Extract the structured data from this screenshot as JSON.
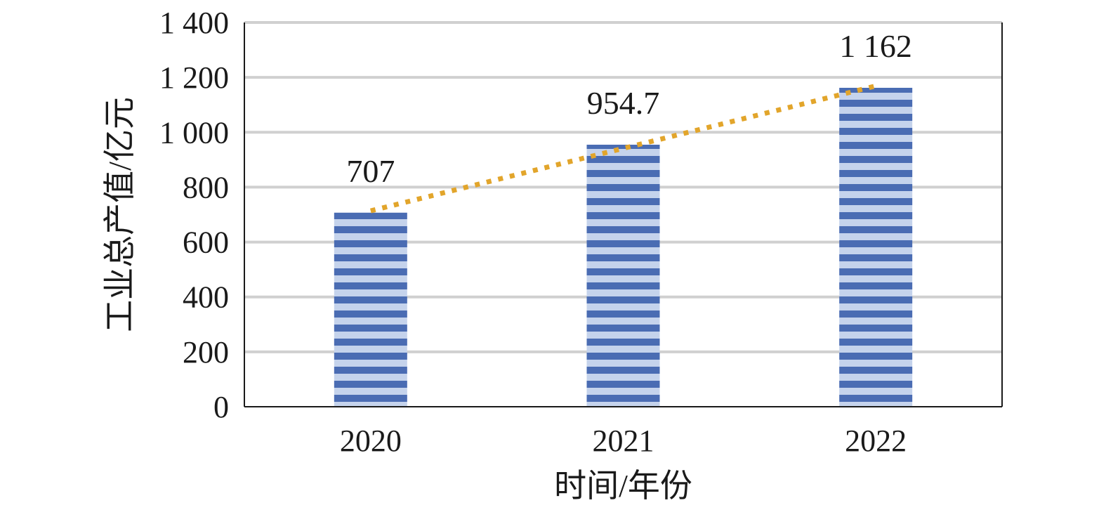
{
  "chart_data": {
    "type": "bar",
    "categories": [
      "2020",
      "2021",
      "2022"
    ],
    "values": [
      707,
      954.7,
      1162
    ],
    "data_labels": [
      "707",
      "954.7",
      "1 162"
    ],
    "xlabel": "时间/年份",
    "ylabel": "工业总产值/亿元",
    "ylim": [
      0,
      1400
    ],
    "yticks": [
      {
        "value": 0,
        "label": "0"
      },
      {
        "value": 200,
        "label": "200"
      },
      {
        "value": 400,
        "label": "400"
      },
      {
        "value": 600,
        "label": "600"
      },
      {
        "value": 800,
        "label": "800"
      },
      {
        "value": 1000,
        "label": "1 000"
      },
      {
        "value": 1200,
        "label": "1 200"
      },
      {
        "value": 1400,
        "label": "1 400"
      }
    ],
    "grid": true,
    "legend": "none",
    "trendline": "linear, dotted",
    "colors": {
      "bar_dark": "#4a6cb3",
      "bar_light": "#c5d3ec",
      "trendline": "#e2a52b",
      "grid": "#d0d0d0",
      "axis": "#1a1a1a"
    }
  }
}
